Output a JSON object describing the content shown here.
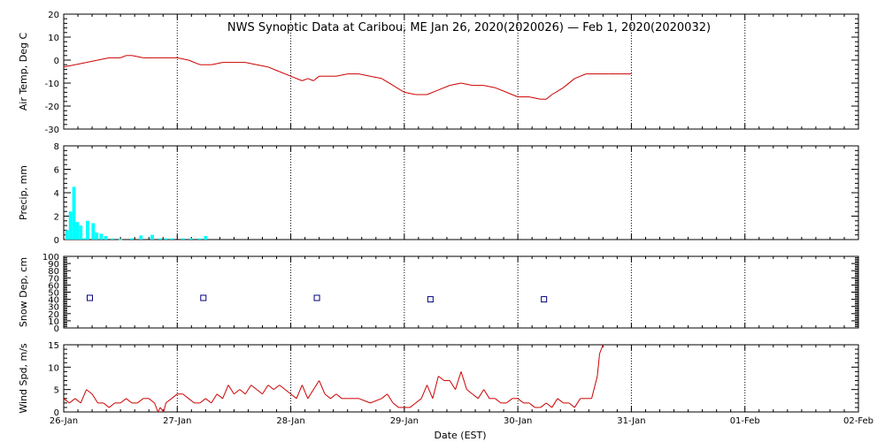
{
  "title": "NWS Synoptic Data at Caribou, ME   Jan 26, 2020(2020026) — Feb  1, 2020(2020032)",
  "xlabel": "Date (EST)",
  "chart_data": [
    {
      "type": "line",
      "ylabel": "Air Temp, Deg C",
      "ylim": [
        -30,
        20
      ],
      "yticks": [
        -30,
        -20,
        -10,
        0,
        10,
        20
      ],
      "x_unit": "days since 26-Jan 00:00 EST",
      "color": "#cc0000",
      "x": [
        0,
        0.1,
        0.2,
        0.3,
        0.4,
        0.5,
        0.55,
        0.6,
        0.7,
        0.8,
        1.0,
        1.1,
        1.2,
        1.25,
        1.3,
        1.4,
        1.5,
        1.6,
        1.7,
        1.8,
        1.9,
        2.0,
        2.1,
        2.15,
        2.2,
        2.25,
        2.3,
        2.4,
        2.5,
        2.6,
        2.7,
        2.8,
        2.9,
        3.0,
        3.1,
        3.2,
        3.3,
        3.4,
        3.5,
        3.6,
        3.7,
        3.8,
        3.9,
        4.0,
        4.1,
        4.2,
        4.25,
        4.3,
        4.4,
        4.5,
        4.6,
        4.7,
        4.8,
        4.9,
        5.0
      ],
      "values": [
        -3,
        -2,
        -1,
        0,
        1,
        1,
        2,
        2,
        1,
        1,
        1,
        0,
        -2,
        -2,
        -2,
        -1,
        -1,
        -1,
        -2,
        -3,
        -5,
        -7,
        -9,
        -8,
        -9,
        -7,
        -7,
        -7,
        -6,
        -6,
        -7,
        -8,
        -11,
        -14,
        -15,
        -15,
        -13,
        -11,
        -10,
        -11,
        -11,
        -12,
        -14,
        -16,
        -16,
        -17,
        -17,
        -15,
        -12,
        -8,
        -6,
        -6,
        -6,
        -6,
        -6
      ]
    },
    {
      "type": "bar",
      "ylabel": "Precip, mm",
      "ylim": [
        0,
        8
      ],
      "yticks": [
        0,
        2,
        4,
        6,
        8
      ],
      "x_unit": "days since 26-Jan 00:00 EST",
      "color": "#00ffff",
      "x": [
        0.03,
        0.06,
        0.09,
        0.12,
        0.15,
        0.18,
        0.21,
        0.26,
        0.29,
        0.33,
        0.37,
        0.43,
        0.5,
        0.6,
        0.68,
        0.78,
        0.85,
        0.9,
        0.95,
        1.05,
        1.12,
        1.2,
        1.25
      ],
      "values": [
        0.8,
        2.4,
        4.5,
        1.5,
        1.2,
        0.1,
        1.6,
        1.4,
        0.6,
        0.5,
        0.3,
        0.1,
        0.05,
        0.1,
        0.35,
        0.4,
        0.1,
        0.1,
        0.1,
        0.1,
        0.1,
        0.1,
        0.3
      ]
    },
    {
      "type": "scatter",
      "ylabel": "Snow Dep, cm",
      "ylim": [
        0,
        100
      ],
      "yticks": [
        0,
        10,
        20,
        30,
        40,
        50,
        60,
        70,
        80,
        90,
        100
      ],
      "x_unit": "days since 26-Jan 00:00 EST",
      "color": "#000080",
      "x": [
        0.23,
        1.23,
        2.23,
        3.23,
        4.23
      ],
      "values": [
        42,
        42,
        42,
        40,
        40
      ]
    },
    {
      "type": "line",
      "ylabel": "Wind Spd, m/s",
      "ylim": [
        0,
        15
      ],
      "yticks": [
        0,
        5,
        10,
        15
      ],
      "x_unit": "days since 26-Jan 00:00 EST",
      "color": "#cc0000",
      "x": [
        0,
        0.05,
        0.1,
        0.15,
        0.2,
        0.25,
        0.3,
        0.35,
        0.4,
        0.45,
        0.5,
        0.55,
        0.6,
        0.65,
        0.7,
        0.75,
        0.8,
        0.83,
        0.85,
        0.88,
        0.9,
        0.95,
        1.0,
        1.05,
        1.1,
        1.15,
        1.2,
        1.25,
        1.3,
        1.35,
        1.4,
        1.45,
        1.5,
        1.55,
        1.6,
        1.65,
        1.7,
        1.75,
        1.8,
        1.85,
        1.9,
        1.95,
        2.0,
        2.05,
        2.1,
        2.15,
        2.2,
        2.25,
        2.3,
        2.35,
        2.4,
        2.45,
        2.5,
        2.6,
        2.7,
        2.8,
        2.85,
        2.9,
        2.95,
        3.0,
        3.05,
        3.1,
        3.15,
        3.2,
        3.25,
        3.3,
        3.35,
        3.4,
        3.45,
        3.5,
        3.55,
        3.6,
        3.65,
        3.7,
        3.75,
        3.8,
        3.85,
        3.9,
        3.95,
        4.0,
        4.05,
        4.1,
        4.15,
        4.2,
        4.25,
        4.3,
        4.35,
        4.4,
        4.45,
        4.5,
        4.55,
        4.6,
        4.65,
        4.7,
        4.72,
        4.75
      ],
      "values": [
        3,
        2,
        3,
        2,
        5,
        4,
        2,
        2,
        1,
        2,
        2,
        3,
        2,
        2,
        3,
        3,
        2,
        0,
        1,
        0,
        2,
        3,
        4,
        4,
        3,
        2,
        2,
        3,
        2,
        4,
        3,
        6,
        4,
        5,
        4,
        6,
        5,
        4,
        6,
        5,
        6,
        5,
        4,
        3,
        6,
        3,
        5,
        7,
        4,
        3,
        4,
        3,
        3,
        3,
        2,
        3,
        4,
        2,
        1,
        1,
        1,
        2,
        3,
        6,
        3,
        8,
        7,
        7,
        5,
        9,
        5,
        4,
        3,
        5,
        3,
        3,
        2,
        2,
        3,
        3,
        2,
        2,
        1,
        1,
        2,
        1,
        3,
        2,
        2,
        1,
        3,
        3,
        3,
        8,
        13,
        15
      ]
    }
  ],
  "x_axis": {
    "range_days": [
      0,
      7
    ],
    "tick_labels": [
      "26-Jan",
      "27-Jan",
      "28-Jan",
      "29-Jan",
      "30-Jan",
      "31-Jan",
      "01-Feb",
      "02-Feb"
    ]
  }
}
